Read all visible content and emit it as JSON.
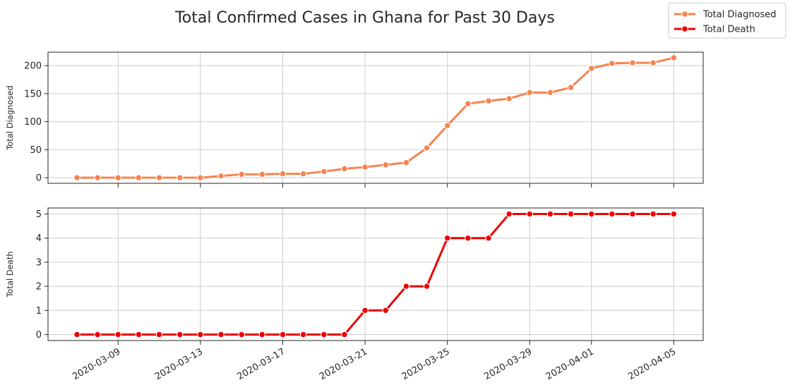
{
  "chart_data": {
    "type": "line",
    "title": "Total Confirmed Cases in Ghana for Past 30 Days",
    "x_start": "2020-03-07",
    "x_end": "2020-04-05",
    "x_tick_labels": [
      "2020-03-09",
      "2020-03-13",
      "2020-03-17",
      "2020-03-21",
      "2020-03-25",
      "2020-03-29",
      "2020-04-01",
      "2020-04-05"
    ],
    "legend_position": "top-right",
    "grid": true,
    "panels": [
      {
        "ylabel": "Total Diagnosed",
        "ylim": [
          -10,
          224
        ],
        "yticks": [
          0,
          50,
          100,
          150,
          200
        ],
        "series": [
          {
            "name": "Total Diagnosed",
            "color": "#f7834f",
            "x": [
              "2020-03-07",
              "2020-03-08",
              "2020-03-09",
              "2020-03-10",
              "2020-03-11",
              "2020-03-12",
              "2020-03-13",
              "2020-03-14",
              "2020-03-15",
              "2020-03-16",
              "2020-03-17",
              "2020-03-18",
              "2020-03-19",
              "2020-03-20",
              "2020-03-21",
              "2020-03-22",
              "2020-03-23",
              "2020-03-24",
              "2020-03-25",
              "2020-03-26",
              "2020-03-27",
              "2020-03-28",
              "2020-03-29",
              "2020-03-30",
              "2020-03-31",
              "2020-04-01",
              "2020-04-02",
              "2020-04-03",
              "2020-04-04",
              "2020-04-05"
            ],
            "values": [
              0,
              0,
              0,
              0,
              0,
              0,
              0,
              3,
              6,
              6,
              7,
              7,
              11,
              16,
              19,
              23,
              27,
              53,
              93,
              132,
              137,
              141,
              152,
              152,
              161,
              195,
              204,
              205,
              205,
              214
            ]
          }
        ]
      },
      {
        "ylabel": "Total Death",
        "ylim": [
          -0.25,
          5.25
        ],
        "yticks": [
          0,
          1,
          2,
          3,
          4,
          5
        ],
        "series": [
          {
            "name": "Total Death",
            "color": "#ee0000",
            "x": [
              "2020-03-07",
              "2020-03-08",
              "2020-03-09",
              "2020-03-10",
              "2020-03-11",
              "2020-03-12",
              "2020-03-13",
              "2020-03-14",
              "2020-03-15",
              "2020-03-16",
              "2020-03-17",
              "2020-03-18",
              "2020-03-19",
              "2020-03-20",
              "2020-03-21",
              "2020-03-22",
              "2020-03-23",
              "2020-03-24",
              "2020-03-25",
              "2020-03-26",
              "2020-03-27",
              "2020-03-28",
              "2020-03-29",
              "2020-03-30",
              "2020-03-31",
              "2020-04-01",
              "2020-04-02",
              "2020-04-03",
              "2020-04-04",
              "2020-04-05"
            ],
            "values": [
              0,
              0,
              0,
              0,
              0,
              0,
              0,
              0,
              0,
              0,
              0,
              0,
              0,
              0,
              1,
              1,
              2,
              2,
              4,
              4,
              4,
              5,
              5,
              5,
              5,
              5,
              5,
              5,
              5,
              5
            ]
          }
        ]
      }
    ]
  }
}
